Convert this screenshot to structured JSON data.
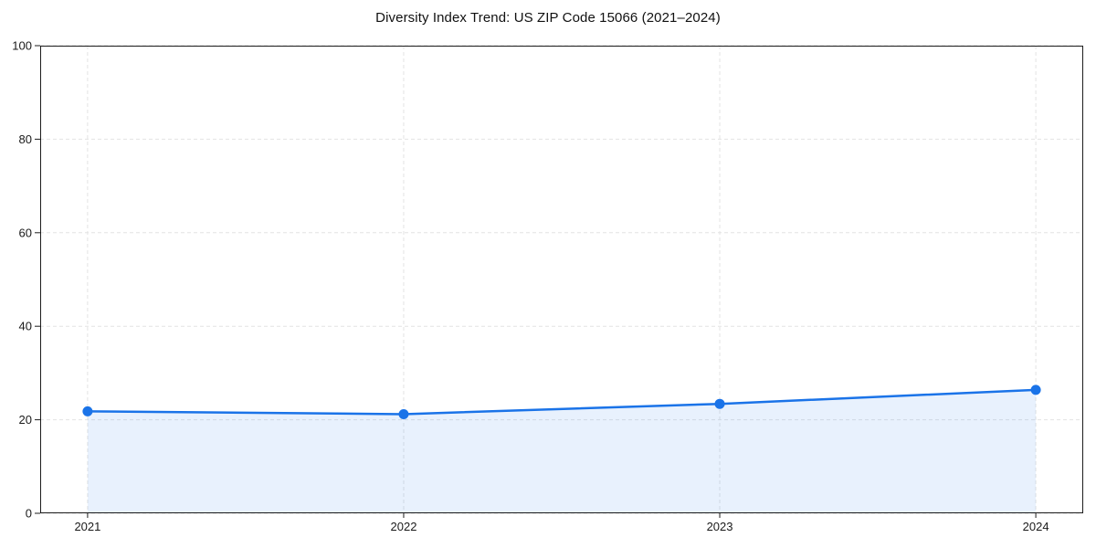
{
  "chart_data": {
    "type": "line",
    "title": "Diversity Index Trend: US ZIP Code 15066 (2021–2024)",
    "series_name": "Diversity Index",
    "categories": [
      "2021",
      "2022",
      "2023",
      "2024"
    ],
    "values": [
      21.8,
      21.2,
      23.4,
      26.4
    ],
    "xlabel": "",
    "ylabel": "",
    "ylim": [
      0,
      100
    ],
    "yticks": [
      0,
      20,
      40,
      60,
      80,
      100
    ],
    "grid": "dashed-both-axes",
    "legend": "none",
    "marker": "circle",
    "area_fill": true,
    "colors": {
      "line": "#1a73e8",
      "marker": "#1a73e8",
      "area": "rgba(26,115,232,0.10)",
      "grid": "#e3e3e3",
      "spine": "#1c1c1c",
      "text": "#1a1a1a",
      "background": "#ffffff"
    }
  }
}
